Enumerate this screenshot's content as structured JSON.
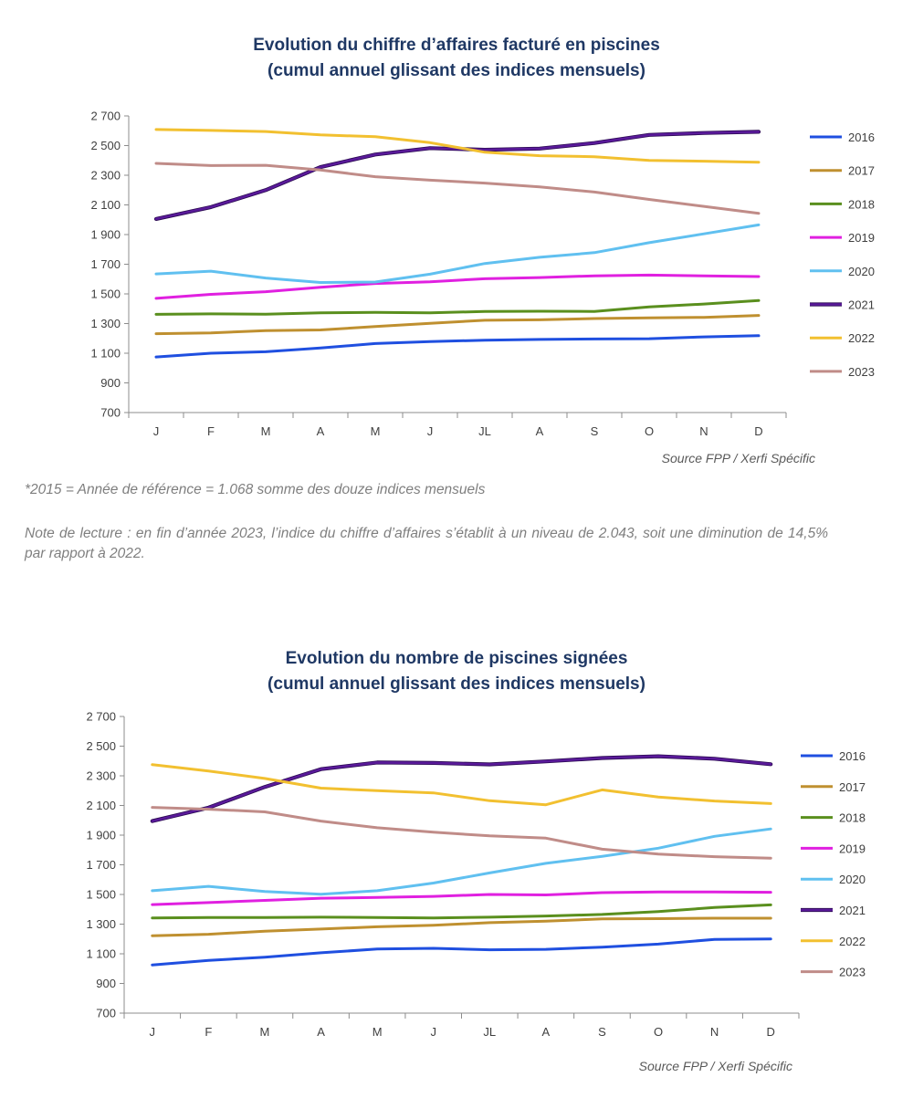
{
  "charts": [
    {
      "title_line1": "Evolution du chiffre d’affaires facturé en piscines",
      "title_line2": "(cumul annuel glissant des indices mensuels)",
      "source": "Source FPP / Xerfi Spécific"
    },
    {
      "title_line1": "Evolution du nombre de piscines signées",
      "title_line2": "(cumul annuel glissant des indices mensuels)",
      "source": "Source FPP / Xerfi Spécific"
    }
  ],
  "reference_note": "*2015 = Année de référence = 1.068 somme des douze indices mensuels",
  "reading_note": "Note de lecture : en fin d’année 2023, l’indice du chiffre d’affaires s’établit à un niveau de 2.043, soit une diminution de 14,5% par rapport à 2022.",
  "colors": {
    "2016": "#1f4fe0",
    "2017": "#bf9030",
    "2018": "#5a8f1e",
    "2019": "#e020e0",
    "2020": "#60c0f0",
    "2021": "#5a1a9a",
    "2022": "#f2c030",
    "2023": "#c08c88"
  },
  "chart_data": [
    {
      "type": "line",
      "title": "Evolution du chiffre d’affaires facturé en piscines (cumul annuel glissant des indices mensuels)",
      "categories": [
        "J",
        "F",
        "M",
        "A",
        "M",
        "J",
        "JL",
        "A",
        "S",
        "O",
        "N",
        "D"
      ],
      "ylim": [
        700,
        2700
      ],
      "yticks": [
        700,
        900,
        1100,
        1300,
        1500,
        1700,
        1900,
        2100,
        2300,
        2500,
        2700
      ],
      "ytick_labels": [
        "700",
        "900",
        "1 100",
        "1 300",
        "1 500",
        "1 700",
        "1 900",
        "2 100",
        "2 300",
        "2 500",
        "2 700"
      ],
      "legend_position": "right",
      "series": [
        {
          "name": "2016",
          "values": [
            1075,
            1100,
            1110,
            1135,
            1165,
            1178,
            1188,
            1193,
            1196,
            1198,
            1210,
            1218
          ]
        },
        {
          "name": "2017",
          "values": [
            1232,
            1237,
            1252,
            1257,
            1280,
            1302,
            1322,
            1325,
            1334,
            1338,
            1342,
            1355
          ]
        },
        {
          "name": "2018",
          "values": [
            1362,
            1365,
            1363,
            1372,
            1375,
            1372,
            1382,
            1383,
            1382,
            1412,
            1432,
            1455
          ]
        },
        {
          "name": "2019",
          "values": [
            1470,
            1497,
            1515,
            1545,
            1570,
            1582,
            1602,
            1610,
            1622,
            1627,
            1622,
            1617
          ]
        },
        {
          "name": "2020",
          "values": [
            1635,
            1653,
            1607,
            1577,
            1580,
            1633,
            1705,
            1747,
            1778,
            1845,
            1905,
            1965
          ]
        },
        {
          "name": "2021",
          "values": [
            2005,
            2085,
            2200,
            2355,
            2440,
            2483,
            2472,
            2480,
            2517,
            2572,
            2585,
            2593
          ]
        },
        {
          "name": "2022",
          "values": [
            2608,
            2602,
            2595,
            2572,
            2560,
            2520,
            2455,
            2432,
            2425,
            2400,
            2395,
            2388
          ]
        },
        {
          "name": "2023",
          "values": [
            2380,
            2365,
            2367,
            2335,
            2290,
            2267,
            2247,
            2222,
            2187,
            2137,
            2090,
            2043
          ]
        }
      ]
    },
    {
      "type": "line",
      "title": "Evolution du nombre de piscines signées (cumul annuel glissant des indices mensuels)",
      "categories": [
        "J",
        "F",
        "M",
        "A",
        "M",
        "J",
        "JL",
        "A",
        "S",
        "O",
        "N",
        "D"
      ],
      "ylim": [
        700,
        2700
      ],
      "yticks": [
        700,
        900,
        1100,
        1300,
        1500,
        1700,
        1900,
        2100,
        2300,
        2500,
        2700
      ],
      "ytick_labels": [
        "700",
        "900",
        "1 100",
        "1 300",
        "1 500",
        "1 700",
        "1 900",
        "2 100",
        "2 300",
        "2 500",
        "2 700"
      ],
      "legend_position": "right",
      "series": [
        {
          "name": "2016",
          "values": [
            1025,
            1055,
            1077,
            1107,
            1132,
            1137,
            1127,
            1130,
            1145,
            1165,
            1197,
            1200
          ]
        },
        {
          "name": "2017",
          "values": [
            1222,
            1232,
            1252,
            1267,
            1282,
            1292,
            1310,
            1320,
            1335,
            1337,
            1340,
            1340
          ]
        },
        {
          "name": "2018",
          "values": [
            1342,
            1345,
            1345,
            1347,
            1345,
            1342,
            1347,
            1355,
            1365,
            1385,
            1412,
            1430
          ]
        },
        {
          "name": "2019",
          "values": [
            1432,
            1445,
            1460,
            1475,
            1480,
            1487,
            1500,
            1497,
            1512,
            1517,
            1517,
            1515
          ]
        },
        {
          "name": "2020",
          "values": [
            1525,
            1555,
            1520,
            1502,
            1525,
            1577,
            1645,
            1710,
            1757,
            1812,
            1892,
            1942
          ]
        },
        {
          "name": "2021",
          "values": [
            1995,
            2085,
            2225,
            2345,
            2390,
            2387,
            2377,
            2397,
            2420,
            2432,
            2415,
            2378
          ]
        },
        {
          "name": "2022",
          "values": [
            2375,
            2332,
            2282,
            2217,
            2200,
            2185,
            2132,
            2105,
            2205,
            2157,
            2130,
            2113
          ]
        },
        {
          "name": "2023",
          "values": [
            2087,
            2075,
            2057,
            1995,
            1950,
            1920,
            1895,
            1880,
            1805,
            1772,
            1755,
            1745
          ]
        }
      ]
    }
  ]
}
